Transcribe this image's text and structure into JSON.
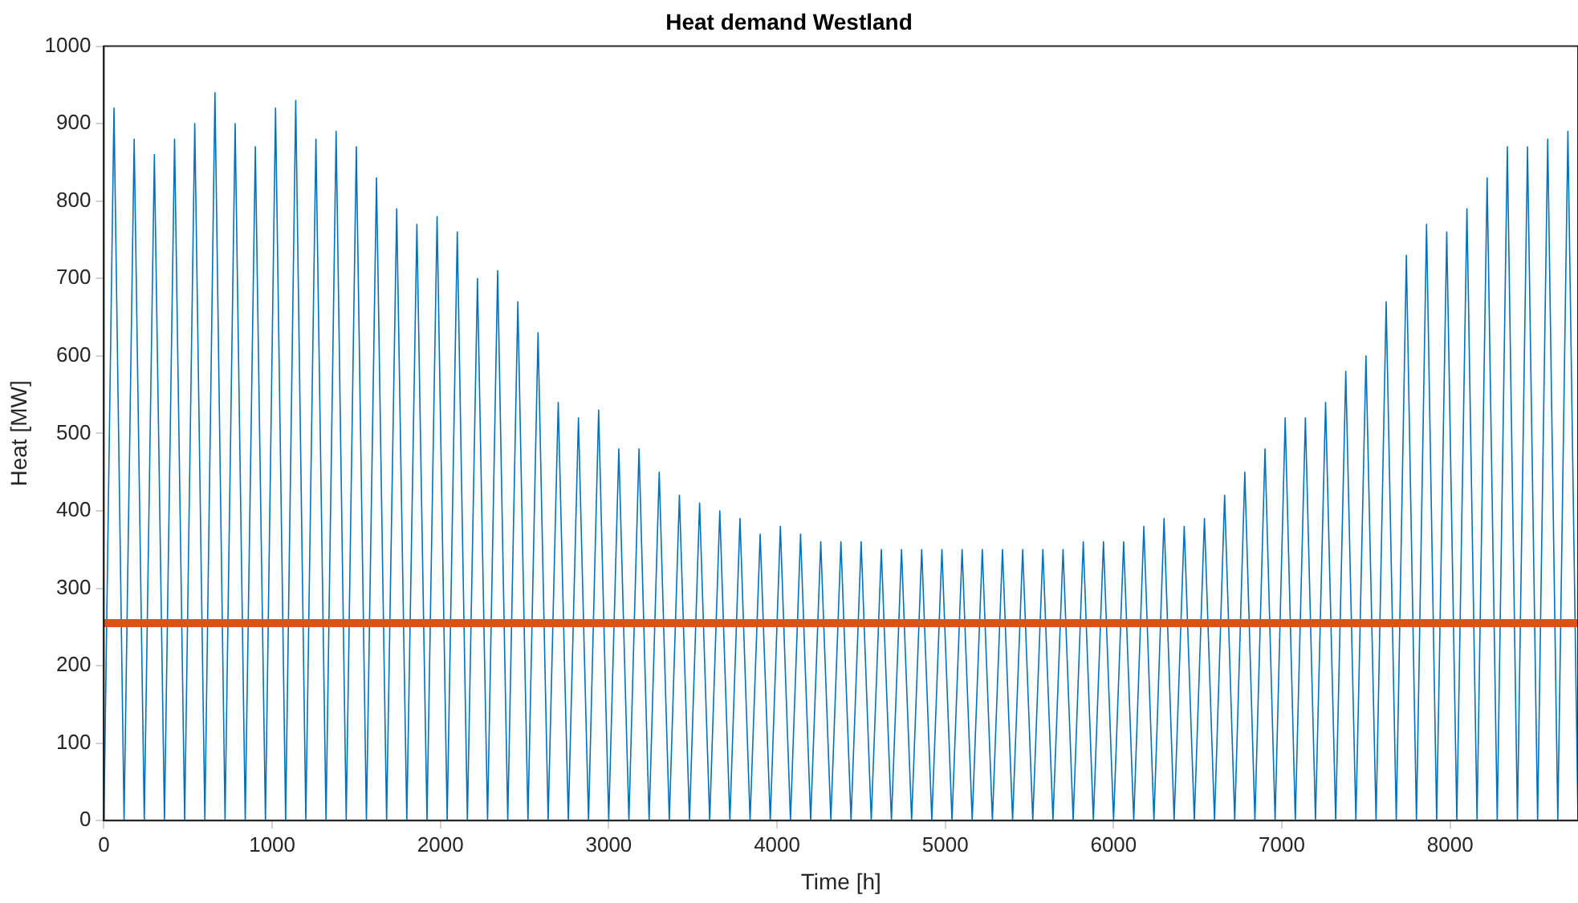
{
  "chart_data": {
    "type": "line",
    "title": "Heat demand Westland",
    "xlabel": "Time [h]",
    "ylabel": "Heat [MW]",
    "x": [
      0,
      60,
      120,
      180,
      240,
      300,
      360,
      420,
      480,
      540,
      600,
      660,
      720,
      780,
      840,
      900,
      960,
      1020,
      1080,
      1140,
      1200,
      1260,
      1320,
      1380,
      1440,
      1500,
      1560,
      1620,
      1680,
      1740,
      1800,
      1860,
      1920,
      1980,
      2040,
      2100,
      2160,
      2220,
      2280,
      2340,
      2400,
      2460,
      2520,
      2580,
      2640,
      2700,
      2760,
      2820,
      2880,
      2940,
      3000,
      3060,
      3120,
      3180,
      3240,
      3300,
      3360,
      3420,
      3480,
      3540,
      3600,
      3660,
      3720,
      3780,
      3840,
      3900,
      3960,
      4020,
      4080,
      4140,
      4200,
      4260,
      4320,
      4380,
      4440,
      4500,
      4560,
      4620,
      4680,
      4740,
      4800,
      4860,
      4920,
      4980,
      5040,
      5100,
      5160,
      5220,
      5280,
      5340,
      5400,
      5460,
      5520,
      5580,
      5640,
      5700,
      5760,
      5820,
      5880,
      5940,
      6000,
      6060,
      6120,
      6180,
      6240,
      6300,
      6360,
      6420,
      6480,
      6540,
      6600,
      6660,
      6720,
      6780,
      6840,
      6900,
      6960,
      7020,
      7080,
      7140,
      7200,
      7260,
      7320,
      7380,
      7440,
      7500,
      7560,
      7620,
      7680,
      7740,
      7800,
      7860,
      7920,
      7980,
      8040,
      8100,
      8160,
      8220,
      8280,
      8340,
      8400,
      8460,
      8520,
      8580,
      8640,
      8700,
      8760
    ],
    "series": [
      {
        "color": "#0072bd",
        "values": [
          0,
          920,
          0,
          880,
          0,
          860,
          0,
          880,
          0,
          900,
          0,
          940,
          0,
          900,
          0,
          870,
          0,
          920,
          0,
          930,
          0,
          880,
          0,
          890,
          0,
          870,
          0,
          830,
          0,
          790,
          0,
          770,
          0,
          780,
          0,
          760,
          0,
          700,
          0,
          710,
          0,
          670,
          0,
          630,
          0,
          540,
          0,
          520,
          0,
          530,
          0,
          480,
          0,
          480,
          0,
          450,
          0,
          420,
          0,
          410,
          0,
          400,
          0,
          390,
          0,
          370,
          0,
          380,
          0,
          370,
          0,
          360,
          0,
          360,
          0,
          360,
          0,
          350,
          0,
          350,
          0,
          350,
          0,
          350,
          0,
          350,
          0,
          350,
          0,
          350,
          0,
          350,
          0,
          350,
          0,
          350,
          0,
          360,
          0,
          360,
          0,
          360,
          0,
          380,
          0,
          390,
          0,
          380,
          0,
          390,
          0,
          420,
          0,
          450,
          0,
          480,
          0,
          520,
          0,
          520,
          0,
          540,
          0,
          580,
          0,
          600,
          0,
          670,
          0,
          730,
          0,
          770,
          0,
          760,
          0,
          790,
          0,
          830,
          0,
          870,
          0,
          870,
          0,
          880,
          0,
          890,
          0
        ]
      }
    ],
    "ref_lines": [
      {
        "axis": "y",
        "value": 255,
        "color": "#d95319"
      }
    ],
    "xlim": [
      0,
      8760
    ],
    "xticks": [
      0,
      1000,
      2000,
      3000,
      4000,
      5000,
      6000,
      7000,
      8000
    ],
    "ylim": [
      0,
      1000
    ],
    "yticks": [
      0,
      100,
      200,
      300,
      400,
      500,
      600,
      700,
      800,
      900,
      1000
    ],
    "grid": false,
    "legend": false,
    "marker": "none",
    "line_style": "solid"
  }
}
